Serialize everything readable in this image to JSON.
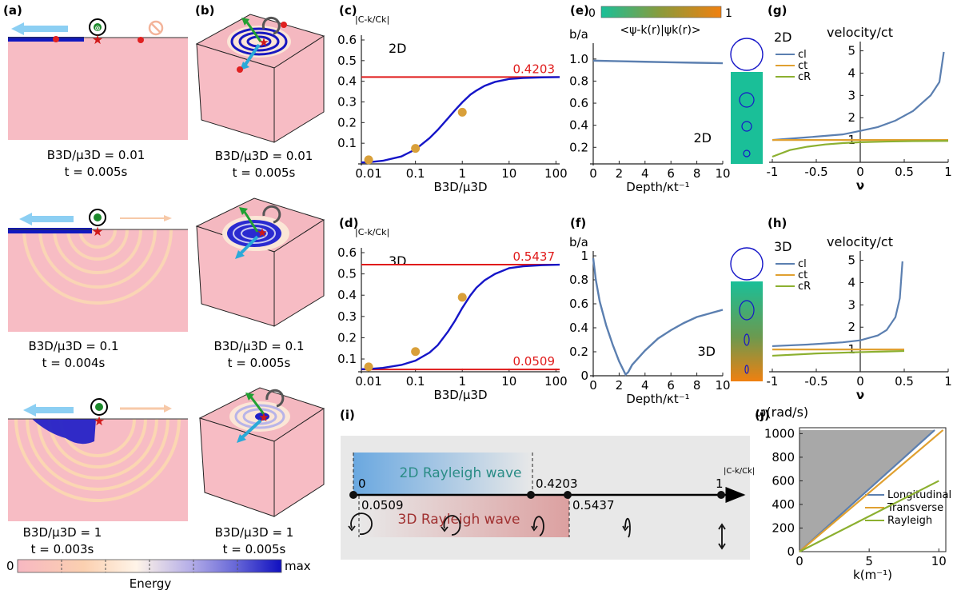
{
  "panels": {
    "a": {
      "label": "(a)",
      "captions": [
        {
          "ratio": "B3D/μ3D = 0.01",
          "time": "t = 0.005s"
        },
        {
          "ratio": "B3D/μ3D = 0.1",
          "time": "t = 0.004s"
        },
        {
          "ratio": "B3D/μ3D = 1",
          "time": "t = 0.003s"
        }
      ],
      "colorbar": {
        "min_label": "0",
        "max_label": "max",
        "title": "Energy",
        "colors": [
          "#f7b8c2",
          "#fbd0b0",
          "#fff4e8",
          "#b7b0e8",
          "#6a6ad8",
          "#1010c0"
        ]
      }
    },
    "b": {
      "label": "(b)",
      "captions": [
        {
          "ratio": "B3D/μ3D = 0.01",
          "time": "t = 0.005s"
        },
        {
          "ratio": "B3D/μ3D = 0.1",
          "time": "t = 0.005s"
        },
        {
          "ratio": "B3D/μ3D = 1",
          "time": "t = 0.005s"
        }
      ]
    },
    "i": {
      "label": "(i)",
      "band_2d": "2D Rayleigh wave",
      "band_3d": "3D Rayleigh wave",
      "axis_end": "|C-k/Ck|",
      "ticks": [
        "0",
        "0.0509",
        "0.4203",
        "0.5437",
        "1"
      ]
    }
  },
  "chart_data": [
    {
      "id": "c",
      "panel_label": "(c)",
      "type": "line+scatter",
      "ylabel": "|C-k/Ck|",
      "xlabel": "B3D/μ3D",
      "inset_label": "2D",
      "x_scale": "log",
      "xlim": [
        0.007,
        120
      ],
      "ylim": [
        0,
        0.6
      ],
      "xticks": [
        0.01,
        0.1,
        1,
        10,
        100
      ],
      "xtick_labels": [
        "0.01",
        "0.1",
        "1",
        "10",
        "100"
      ],
      "yticks": [
        0.1,
        0.2,
        0.3,
        0.4,
        0.5,
        0.6
      ],
      "ytick_labels": [
        "0.1",
        "0.2",
        "0.3",
        "0.4",
        "0.5",
        "0.6"
      ],
      "hlines": [
        {
          "value": 0.4203,
          "label": "0.4203",
          "color": "#e01b1b"
        }
      ],
      "curve": {
        "color": "#1515c8",
        "x": [
          0.007,
          0.01,
          0.02,
          0.05,
          0.1,
          0.2,
          0.3,
          0.5,
          0.7,
          1,
          1.5,
          2,
          3,
          5,
          10,
          20,
          50,
          120
        ],
        "y": [
          0.007,
          0.008,
          0.015,
          0.036,
          0.07,
          0.125,
          0.165,
          0.222,
          0.26,
          0.298,
          0.336,
          0.355,
          0.378,
          0.397,
          0.411,
          0.416,
          0.419,
          0.4201
        ]
      },
      "points": {
        "color": "#d9a03a",
        "x": [
          0.01,
          0.1,
          1
        ],
        "y": [
          0.02,
          0.075,
          0.25
        ]
      }
    },
    {
      "id": "d",
      "panel_label": "(d)",
      "type": "line+scatter",
      "ylabel": "|C-k/Ck|",
      "xlabel": "B3D/μ3D",
      "inset_label": "3D",
      "x_scale": "log",
      "xlim": [
        0.007,
        120
      ],
      "ylim": [
        0.04,
        0.6
      ],
      "xticks": [
        0.01,
        0.1,
        1,
        10,
        100
      ],
      "xtick_labels": [
        "0.01",
        "0.1",
        "1",
        "10",
        "100"
      ],
      "yticks": [
        0.1,
        0.2,
        0.3,
        0.4,
        0.5,
        0.6
      ],
      "ytick_labels": [
        "0.1",
        "0.2",
        "0.3",
        "0.4",
        "0.5",
        "0.6"
      ],
      "hlines": [
        {
          "value": 0.5437,
          "label": "0.5437",
          "color": "#e01b1b"
        },
        {
          "value": 0.0509,
          "label": "0.0509",
          "color": "#e01b1b"
        }
      ],
      "curve": {
        "color": "#1515c8",
        "x": [
          0.007,
          0.01,
          0.02,
          0.05,
          0.1,
          0.2,
          0.3,
          0.5,
          0.7,
          1,
          1.5,
          2,
          3,
          5,
          10,
          20,
          50,
          120
        ],
        "y": [
          0.052,
          0.053,
          0.058,
          0.072,
          0.092,
          0.13,
          0.165,
          0.23,
          0.28,
          0.34,
          0.4,
          0.435,
          0.47,
          0.5,
          0.527,
          0.536,
          0.541,
          0.5433
        ]
      },
      "points": {
        "color": "#d9a03a",
        "x": [
          0.01,
          0.1,
          1
        ],
        "y": [
          0.063,
          0.135,
          0.39
        ]
      }
    },
    {
      "id": "e",
      "panel_label": "(e)",
      "type": "line",
      "ylabel": "b/a",
      "xlabel": "Depth/κt⁻¹",
      "inset_label": "2D",
      "xlim": [
        0,
        10
      ],
      "ylim": [
        0.05,
        1.1
      ],
      "xticks": [
        0,
        2,
        4,
        6,
        8,
        10
      ],
      "xtick_labels": [
        "0",
        "2",
        "4",
        "6",
        "8",
        "10"
      ],
      "yticks": [
        0.2,
        0.4,
        0.6,
        0.8,
        1.0
      ],
      "ytick_labels": [
        "0.2",
        "0.4",
        "0.6",
        "0.8",
        "1.0"
      ],
      "curve": {
        "color": "#5b7fb0",
        "x": [
          0,
          2,
          4,
          6,
          8,
          10
        ],
        "y": [
          0.985,
          0.98,
          0.975,
          0.97,
          0.966,
          0.962
        ]
      },
      "colorbar": {
        "title": "<ψ-k(r)|ψk(r)>",
        "min_label": "0",
        "max_label": "1",
        "colors": [
          "#1abf98",
          "#8c9a3a",
          "#f08010"
        ]
      }
    },
    {
      "id": "f",
      "panel_label": "(f)",
      "type": "line",
      "ylabel": "b/a",
      "xlabel": "Depth/κt⁻¹",
      "inset_label": "3D",
      "xlim": [
        0,
        10
      ],
      "ylim": [
        0,
        1
      ],
      "xticks": [
        0,
        2,
        4,
        6,
        8,
        10
      ],
      "xtick_labels": [
        "0",
        "2",
        "4",
        "6",
        "8",
        "10"
      ],
      "yticks": [
        0,
        0.2,
        0.4,
        0.6,
        0.8,
        1
      ],
      "ytick_labels": [
        "0",
        "0.2",
        "0.4",
        "0.6",
        "0.8",
        "1"
      ],
      "curve": {
        "color": "#5b7fb0",
        "x": [
          0,
          0.2,
          0.5,
          1,
          1.5,
          2,
          2.5,
          2.7,
          3,
          4,
          5,
          6,
          7,
          8,
          9,
          10
        ],
        "y": [
          0.98,
          0.8,
          0.62,
          0.42,
          0.26,
          0.12,
          0.01,
          0.03,
          0.09,
          0.21,
          0.31,
          0.38,
          0.44,
          0.49,
          0.52,
          0.55
        ]
      }
    },
    {
      "id": "g",
      "panel_label": "(g)",
      "type": "line",
      "title": "velocity/ct",
      "xlabel": "ν",
      "inset_label": "2D",
      "xlim": [
        -1,
        1
      ],
      "ylim": [
        0,
        5.2
      ],
      "xticks": [
        -1,
        -0.5,
        0,
        0.5,
        1
      ],
      "xtick_labels": [
        "-1",
        "-0.5",
        "0",
        "0.5",
        "1"
      ],
      "yticks": [
        1,
        2,
        3,
        4,
        5
      ],
      "ytick_labels": [
        "1",
        "2",
        "3",
        "4",
        "5"
      ],
      "series": [
        {
          "name": "cl",
          "sub": "l",
          "color": "#5b7fb0",
          "x": [
            -1,
            -0.6,
            -0.2,
            0,
            0.2,
            0.4,
            0.6,
            0.8,
            0.9,
            0.95
          ],
          "y": [
            1.0,
            1.12,
            1.25,
            1.41,
            1.58,
            1.87,
            2.3,
            3.0,
            3.6,
            4.95
          ]
        },
        {
          "name": "ct",
          "sub": "t",
          "color": "#e0a030",
          "x": [
            -1,
            1
          ],
          "y": [
            1,
            1
          ]
        },
        {
          "name": "cR",
          "sub": "R",
          "color": "#8cb030",
          "x": [
            -1,
            -0.8,
            -0.6,
            -0.4,
            -0.2,
            0,
            0.3,
            0.6,
            1
          ],
          "y": [
            0.25,
            0.55,
            0.7,
            0.8,
            0.86,
            0.9,
            0.93,
            0.95,
            0.96
          ]
        }
      ]
    },
    {
      "id": "h",
      "panel_label": "(h)",
      "type": "line",
      "title": "velocity/ct",
      "xlabel": "ν",
      "inset_label": "3D",
      "xlim": [
        -1,
        1
      ],
      "ylim": [
        0,
        5.2
      ],
      "xticks": [
        -1,
        -0.5,
        0,
        0.5,
        1
      ],
      "xtick_labels": [
        "-1",
        "-0.5",
        "0",
        "0.5",
        "1"
      ],
      "yticks": [
        1,
        2,
        3,
        4,
        5
      ],
      "ytick_labels": [
        "1",
        "2",
        "3",
        "4",
        "5"
      ],
      "series": [
        {
          "name": "cl",
          "sub": "l",
          "color": "#5b7fb0",
          "x": [
            -1,
            -0.6,
            -0.2,
            0,
            0.2,
            0.3,
            0.4,
            0.45,
            0.48
          ],
          "y": [
            1.15,
            1.22,
            1.32,
            1.41,
            1.63,
            1.87,
            2.45,
            3.3,
            4.95
          ]
        },
        {
          "name": "ct",
          "sub": "t",
          "color": "#e0a030",
          "x": [
            -1,
            0.5
          ],
          "y": [
            1,
            1
          ]
        },
        {
          "name": "cR",
          "sub": "R",
          "color": "#8cb030",
          "x": [
            -1,
            -0.5,
            0,
            0.3,
            0.5
          ],
          "y": [
            0.72,
            0.82,
            0.88,
            0.91,
            0.93
          ]
        }
      ]
    },
    {
      "id": "j",
      "panel_label": "(j)",
      "type": "line",
      "title": "ω(rad/s)",
      "xlabel": "k(m⁻¹)",
      "xlim": [
        0,
        10.5
      ],
      "ylim": [
        0,
        1050
      ],
      "xticks": [
        0,
        5,
        10
      ],
      "xtick_labels": [
        "0",
        "5",
        "10"
      ],
      "yticks": [
        0,
        200,
        400,
        600,
        800,
        1000
      ],
      "ytick_labels": [
        "0",
        "200",
        "400",
        "600",
        "800",
        "1000"
      ],
      "series": [
        {
          "name": "Longitudinal",
          "color": "#5b7fb0",
          "x": [
            0,
            9.7
          ],
          "y": [
            0,
            1030
          ]
        },
        {
          "name": "Transverse",
          "color": "#e0a030",
          "x": [
            0,
            10.3
          ],
          "y": [
            0,
            1030
          ]
        },
        {
          "name": "Rayleigh",
          "color": "#8cb030",
          "x": [
            0,
            10
          ],
          "y": [
            0,
            600
          ]
        }
      ]
    }
  ]
}
